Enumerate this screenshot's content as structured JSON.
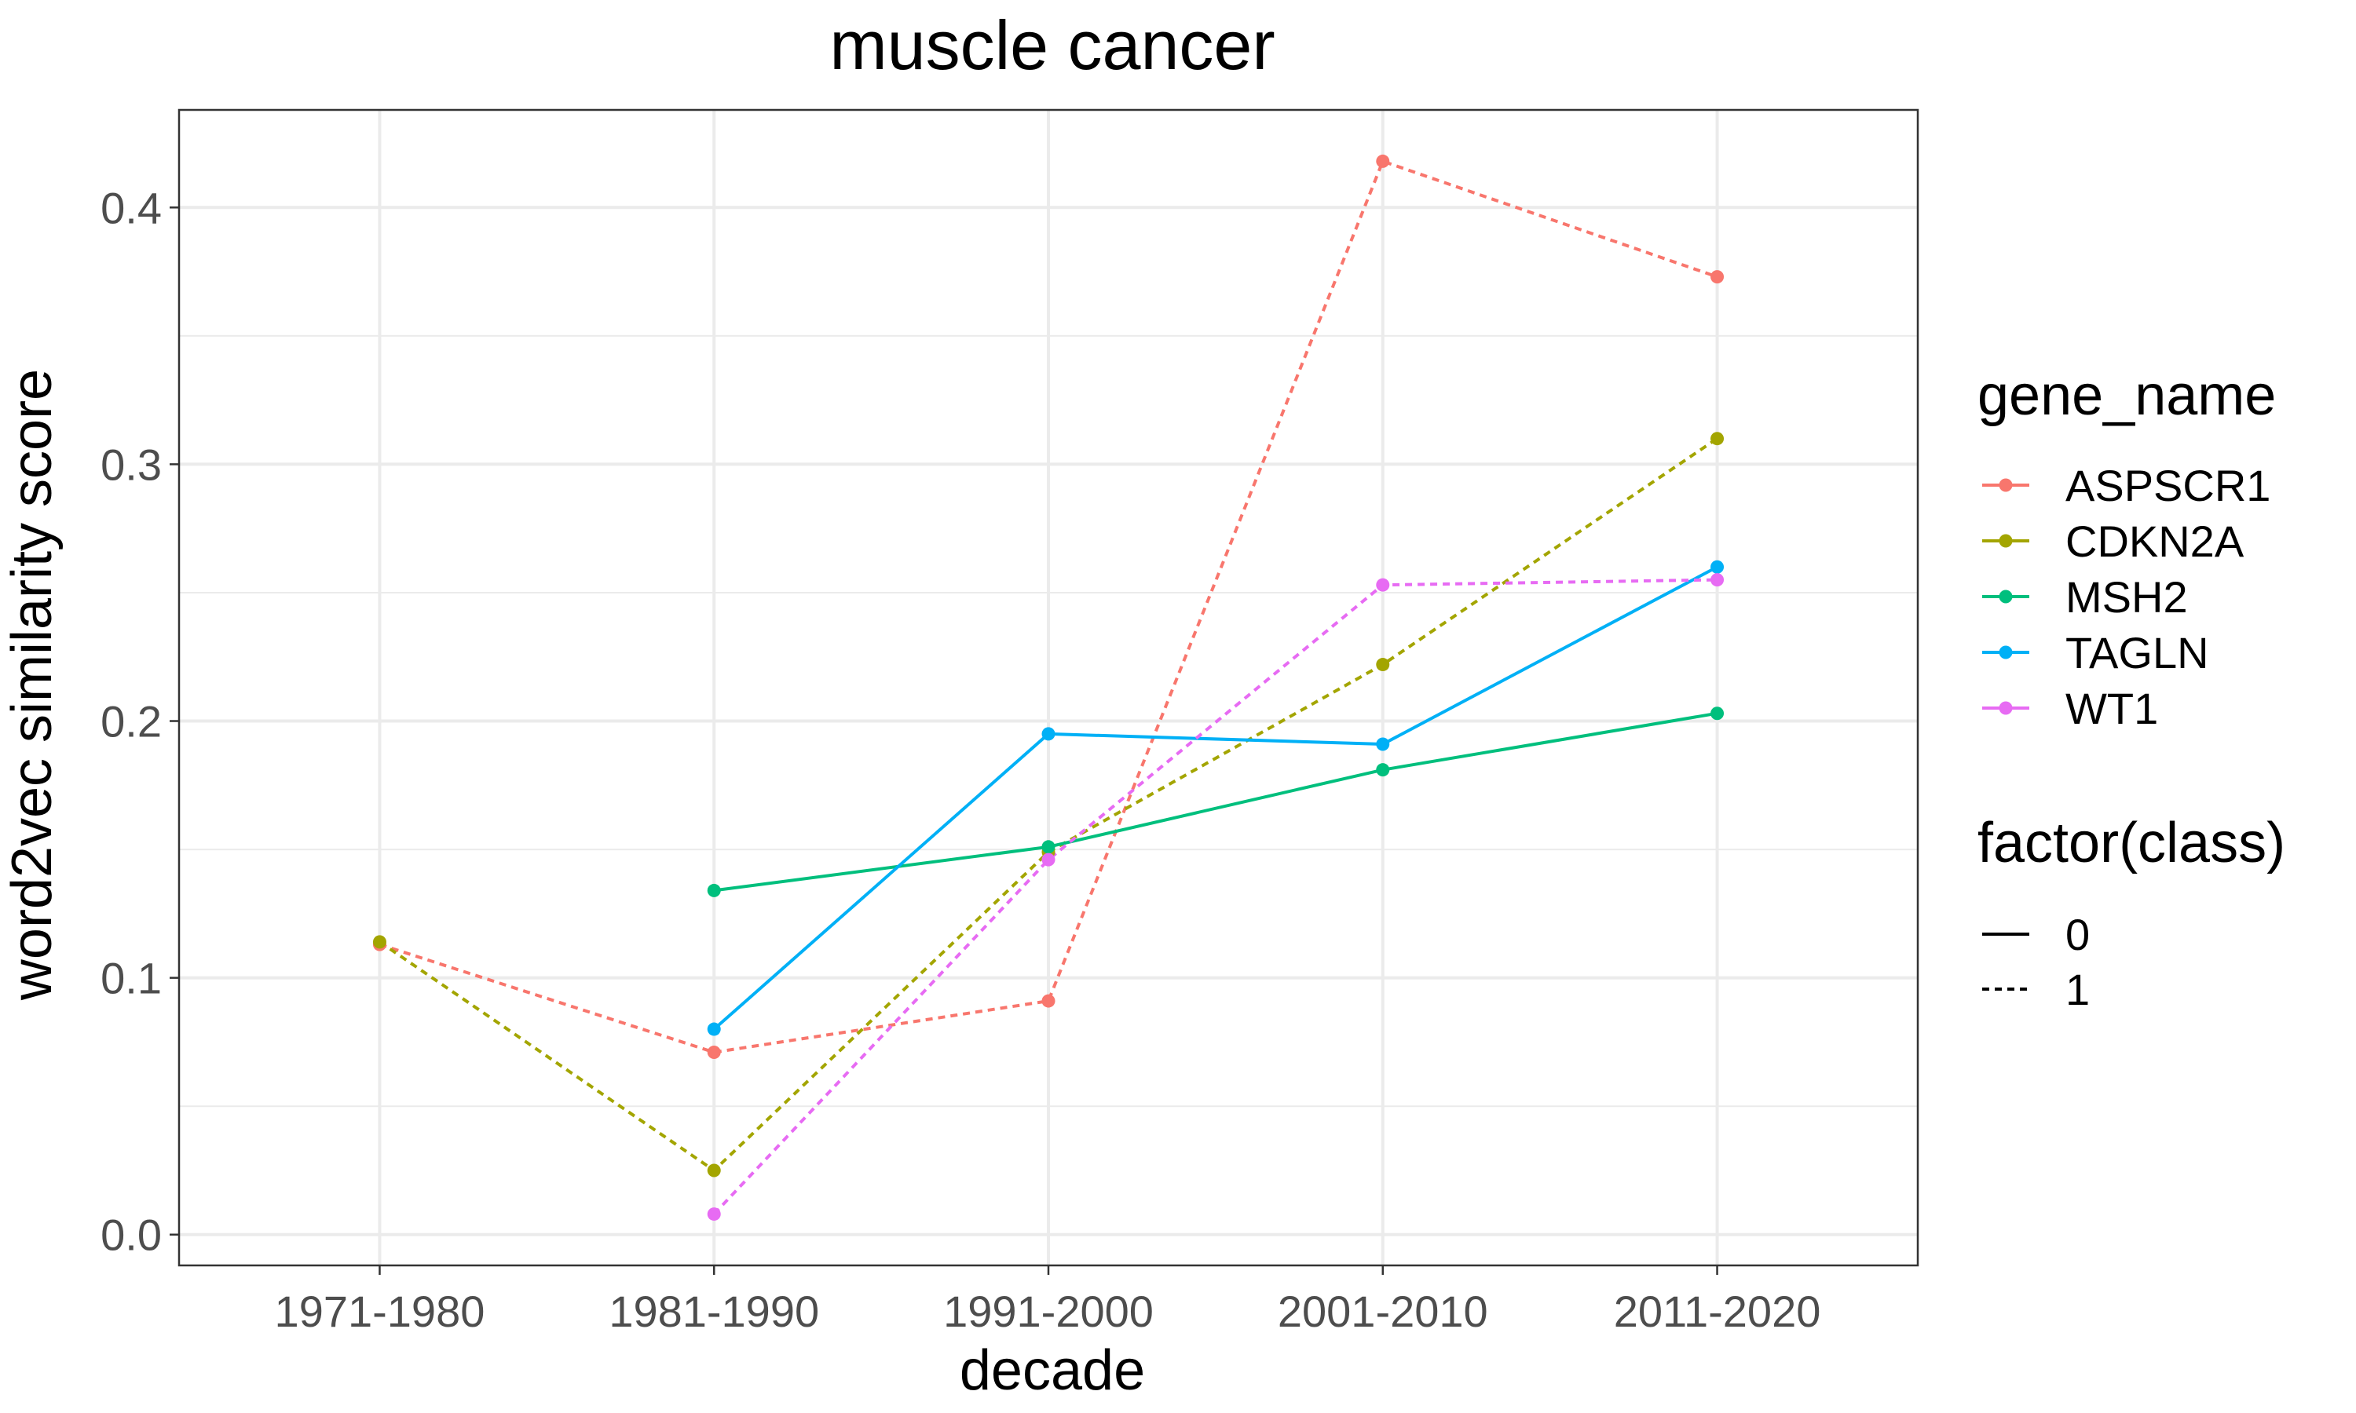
{
  "chart_data": {
    "type": "line",
    "title": "muscle cancer",
    "xlabel": "decade",
    "ylabel": "word2vec similarity score",
    "categories": [
      "1971-1980",
      "1981-1990",
      "1991-2000",
      "2001-2010",
      "2011-2020"
    ],
    "ylim": [
      -0.012,
      0.438
    ],
    "yticks": [
      "0.0",
      "0.1",
      "0.2",
      "0.3",
      "0.4"
    ],
    "grid": true,
    "legend_placement": "right",
    "legends": [
      {
        "title": "gene_name",
        "entries": [
          {
            "label": "ASPSCR1",
            "color": "#F8766D"
          },
          {
            "label": "CDKN2A",
            "color": "#A3A500"
          },
          {
            "label": "MSH2",
            "color": "#00BF7D"
          },
          {
            "label": "TAGLN",
            "color": "#00B0F6"
          },
          {
            "label": "WT1",
            "color": "#E76BF3"
          }
        ]
      },
      {
        "title": "factor(class)",
        "entries": [
          {
            "label": "0",
            "linetype": "solid"
          },
          {
            "label": "1",
            "linetype": "dashed"
          }
        ]
      }
    ],
    "series": [
      {
        "name": "ASPSCR1",
        "color": "#F8766D",
        "class": "1",
        "values": [
          0.113,
          0.071,
          0.091,
          0.418,
          0.373
        ]
      },
      {
        "name": "CDKN2A",
        "color": "#A3A500",
        "class": "1",
        "values": [
          0.114,
          0.025,
          0.149,
          0.222,
          0.31
        ]
      },
      {
        "name": "MSH2",
        "color": "#00BF7D",
        "class": "0",
        "values": [
          null,
          0.134,
          0.151,
          0.181,
          0.203
        ]
      },
      {
        "name": "TAGLN",
        "color": "#00B0F6",
        "class": "0",
        "values": [
          null,
          0.08,
          0.195,
          0.191,
          0.26
        ]
      },
      {
        "name": "WT1",
        "color": "#E76BF3",
        "class": "1",
        "values": [
          null,
          0.008,
          0.146,
          0.253,
          0.255
        ]
      }
    ]
  }
}
